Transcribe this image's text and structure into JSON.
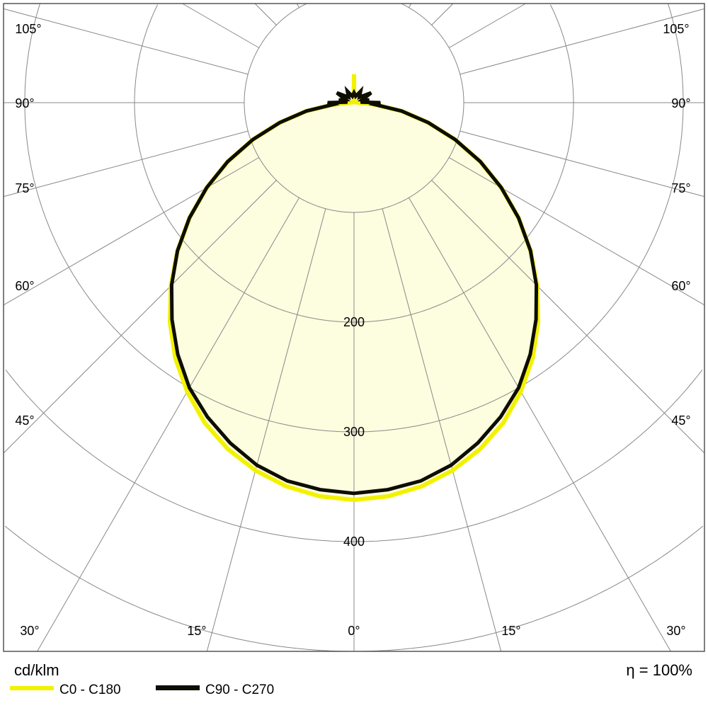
{
  "chart_data": {
    "type": "polar",
    "unit_label": "cd/klm",
    "efficiency_label": "η = 100%",
    "radial_ticks": [
      100,
      200,
      300,
      400,
      500
    ],
    "radial_tick_labels": [
      "200",
      "300",
      "400"
    ],
    "angle_ticks": [
      0,
      15,
      30,
      45,
      60,
      75,
      90,
      105
    ],
    "angle_tick_labels": [
      "0°",
      "15°",
      "30°",
      "45°",
      "60°",
      "75°",
      "90°",
      "105°"
    ],
    "grid": true,
    "legend_placement": "bottom-left",
    "angles": [
      0,
      5,
      10,
      15,
      20,
      25,
      30,
      35,
      40,
      45,
      50,
      55,
      60,
      65,
      70,
      75,
      80,
      85,
      90,
      95,
      100,
      110,
      120,
      135,
      150,
      165,
      180
    ],
    "series": [
      {
        "name": "C0 - C180",
        "color": "#f2f200",
        "values": [
          362,
          360,
          355,
          347,
          336,
          322,
          304,
          284,
          261,
          236,
          210,
          183,
          155,
          127,
          98,
          70,
          44,
          19,
          4,
          3,
          2,
          1,
          1,
          1,
          1,
          1,
          26
        ]
      },
      {
        "name": "C90 - C270",
        "color": "#0d0d00",
        "values": [
          356,
          354,
          350,
          342,
          330,
          316,
          300,
          280,
          258,
          235,
          210,
          183,
          155,
          127,
          98,
          70,
          44,
          19,
          24,
          6,
          14,
          8,
          18,
          7,
          12,
          6,
          9
        ]
      }
    ],
    "fill_color": "#fdfde0"
  }
}
